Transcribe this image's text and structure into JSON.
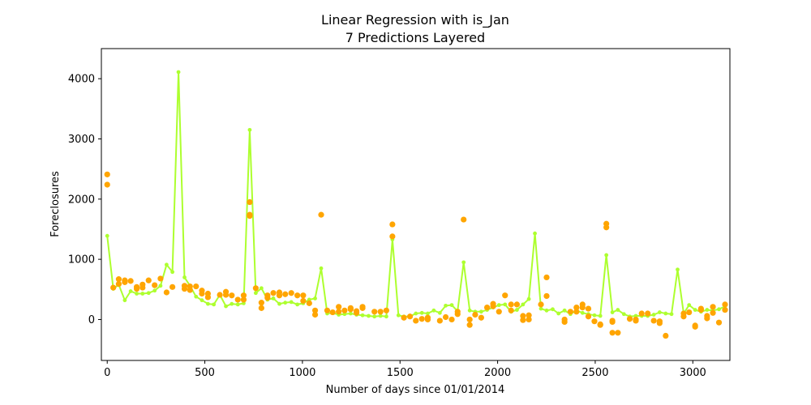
{
  "chart_data": {
    "type": "scatter",
    "title": "Linear Regression with is_Jan",
    "subtitle": "7 Predictions Layered",
    "xlabel": "Number of days since 01/01/2014",
    "ylabel": "Foreclosures",
    "xlim": [
      -30,
      3190
    ],
    "ylim": [
      -680,
      4500
    ],
    "xticks": [
      0,
      500,
      1000,
      1500,
      2000,
      2500,
      3000
    ],
    "yticks": [
      0,
      1000,
      2000,
      3000,
      4000
    ],
    "grid": false,
    "line_color": "#adff2f",
    "point_color": "#ffa500",
    "line_x": [
      0,
      31,
      59,
      90,
      120,
      151,
      181,
      212,
      243,
      273,
      304,
      334,
      365,
      396,
      424,
      455,
      485,
      516,
      546,
      577,
      608,
      638,
      669,
      699,
      730,
      761,
      790,
      821,
      851,
      882,
      912,
      943,
      974,
      1004,
      1035,
      1065,
      1096,
      1127,
      1155,
      1186,
      1216,
      1247,
      1277,
      1308,
      1339,
      1369,
      1400,
      1430,
      1461,
      1492,
      1520,
      1551,
      1581,
      1612,
      1642,
      1673,
      1704,
      1734,
      1765,
      1795,
      1826,
      1857,
      1885,
      1916,
      1946,
      1977,
      2007,
      2038,
      2069,
      2099,
      2130,
      2160,
      2191,
      2222,
      2251,
      2282,
      2312,
      2343,
      2373,
      2404,
      2435,
      2465,
      2496,
      2526,
      2557,
      2588,
      2616,
      2647,
      2677,
      2708,
      2738,
      2769,
      2800,
      2830,
      2861,
      2891,
      2922,
      2953,
      2981,
      3012,
      3042,
      3073,
      3103,
      3134,
      3165
    ],
    "line_y": [
      1390,
      510,
      580,
      320,
      470,
      430,
      430,
      440,
      480,
      560,
      910,
      790,
      4110,
      700,
      560,
      380,
      320,
      260,
      250,
      410,
      220,
      260,
      250,
      270,
      3150,
      440,
      520,
      330,
      350,
      260,
      280,
      290,
      250,
      270,
      330,
      350,
      850,
      100,
      110,
      80,
      90,
      100,
      80,
      70,
      60,
      50,
      60,
      50,
      1330,
      70,
      50,
      50,
      100,
      110,
      100,
      150,
      110,
      230,
      240,
      140,
      950,
      150,
      130,
      130,
      160,
      200,
      240,
      250,
      130,
      160,
      250,
      340,
      1430,
      180,
      150,
      170,
      100,
      150,
      90,
      150,
      110,
      90,
      70,
      60,
      1070,
      120,
      160,
      90,
      50,
      60,
      60,
      60,
      80,
      120,
      100,
      90,
      830,
      100,
      240,
      160,
      130,
      160,
      150,
      170,
      220
    ],
    "points": [
      [
        0,
        2410
      ],
      [
        0,
        2240
      ],
      [
        31,
        530
      ],
      [
        59,
        670
      ],
      [
        59,
        590
      ],
      [
        90,
        650
      ],
      [
        90,
        620
      ],
      [
        120,
        640
      ],
      [
        151,
        510
      ],
      [
        151,
        540
      ],
      [
        181,
        580
      ],
      [
        181,
        530
      ],
      [
        212,
        650
      ],
      [
        243,
        570
      ],
      [
        273,
        680
      ],
      [
        304,
        450
      ],
      [
        334,
        540
      ],
      [
        396,
        510
      ],
      [
        396,
        560
      ],
      [
        424,
        490
      ],
      [
        424,
        550
      ],
      [
        455,
        550
      ],
      [
        485,
        480
      ],
      [
        485,
        430
      ],
      [
        516,
        370
      ],
      [
        516,
        430
      ],
      [
        577,
        410
      ],
      [
        608,
        460
      ],
      [
        608,
        410
      ],
      [
        638,
        400
      ],
      [
        669,
        330
      ],
      [
        699,
        400
      ],
      [
        699,
        330
      ],
      [
        730,
        1950
      ],
      [
        730,
        1740
      ],
      [
        730,
        1720
      ],
      [
        761,
        520
      ],
      [
        790,
        280
      ],
      [
        790,
        190
      ],
      [
        821,
        400
      ],
      [
        821,
        360
      ],
      [
        851,
        440
      ],
      [
        882,
        450
      ],
      [
        882,
        400
      ],
      [
        912,
        420
      ],
      [
        943,
        440
      ],
      [
        974,
        400
      ],
      [
        1004,
        400
      ],
      [
        1004,
        310
      ],
      [
        1035,
        270
      ],
      [
        1065,
        150
      ],
      [
        1065,
        80
      ],
      [
        1096,
        1740
      ],
      [
        1127,
        150
      ],
      [
        1155,
        120
      ],
      [
        1186,
        210
      ],
      [
        1186,
        130
      ],
      [
        1216,
        150
      ],
      [
        1247,
        170
      ],
      [
        1247,
        190
      ],
      [
        1277,
        140
      ],
      [
        1277,
        110
      ],
      [
        1308,
        210
      ],
      [
        1308,
        190
      ],
      [
        1369,
        130
      ],
      [
        1400,
        130
      ],
      [
        1430,
        150
      ],
      [
        1461,
        1580
      ],
      [
        1461,
        1380
      ],
      [
        1520,
        30
      ],
      [
        1551,
        50
      ],
      [
        1581,
        -20
      ],
      [
        1612,
        10
      ],
      [
        1642,
        0
      ],
      [
        1642,
        30
      ],
      [
        1704,
        -20
      ],
      [
        1734,
        40
      ],
      [
        1765,
        0
      ],
      [
        1795,
        130
      ],
      [
        1795,
        90
      ],
      [
        1826,
        1660
      ],
      [
        1857,
        -90
      ],
      [
        1857,
        0
      ],
      [
        1885,
        80
      ],
      [
        1916,
        30
      ],
      [
        1946,
        200
      ],
      [
        1977,
        260
      ],
      [
        1977,
        220
      ],
      [
        2007,
        130
      ],
      [
        2038,
        400
      ],
      [
        2069,
        150
      ],
      [
        2069,
        250
      ],
      [
        2099,
        250
      ],
      [
        2130,
        -10
      ],
      [
        2130,
        60
      ],
      [
        2160,
        70
      ],
      [
        2160,
        0
      ],
      [
        2222,
        250
      ],
      [
        2251,
        700
      ],
      [
        2251,
        390
      ],
      [
        2343,
        0
      ],
      [
        2343,
        -40
      ],
      [
        2373,
        130
      ],
      [
        2404,
        200
      ],
      [
        2404,
        130
      ],
      [
        2435,
        250
      ],
      [
        2435,
        200
      ],
      [
        2465,
        180
      ],
      [
        2465,
        50
      ],
      [
        2496,
        -30
      ],
      [
        2526,
        -80
      ],
      [
        2526,
        -90
      ],
      [
        2557,
        1590
      ],
      [
        2557,
        1530
      ],
      [
        2588,
        -20
      ],
      [
        2588,
        -40
      ],
      [
        2588,
        -220
      ],
      [
        2616,
        -220
      ],
      [
        2677,
        10
      ],
      [
        2708,
        0
      ],
      [
        2708,
        -20
      ],
      [
        2738,
        100
      ],
      [
        2769,
        100
      ],
      [
        2800,
        -20
      ],
      [
        2830,
        -30
      ],
      [
        2830,
        -60
      ],
      [
        2861,
        -270
      ],
      [
        2953,
        100
      ],
      [
        2953,
        50
      ],
      [
        2981,
        120
      ],
      [
        3012,
        -100
      ],
      [
        3012,
        -120
      ],
      [
        3042,
        180
      ],
      [
        3042,
        160
      ],
      [
        3073,
        60
      ],
      [
        3073,
        20
      ],
      [
        3103,
        210
      ],
      [
        3103,
        110
      ],
      [
        3134,
        -50
      ],
      [
        3165,
        250
      ],
      [
        3165,
        160
      ]
    ]
  }
}
